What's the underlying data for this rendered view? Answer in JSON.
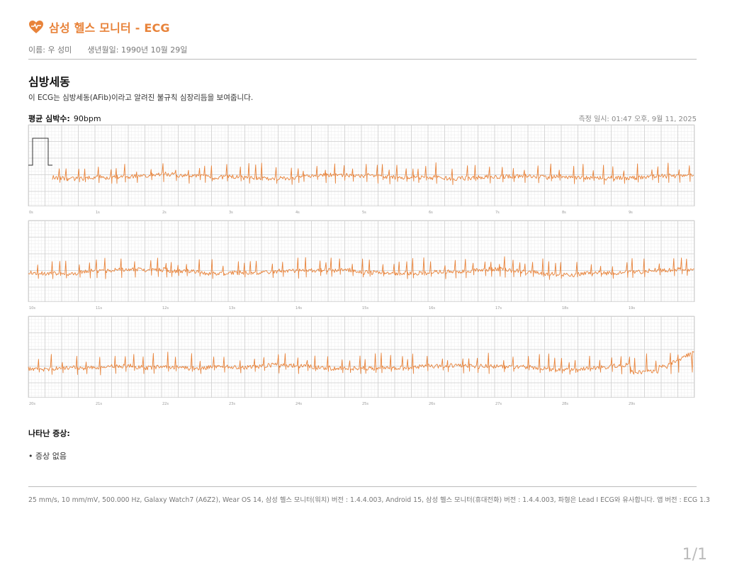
{
  "header": {
    "app_title": "삼성 헬스 모니터 - ECG",
    "name_label": "이름: 우 성미",
    "dob_label": "생년월일: 1990년 10월 29일"
  },
  "result": {
    "title": "심방세동",
    "description": "이 ECG는 심방세동(AFib)이라고 알려진 불규칙 심장리듬을 보여줍니다."
  },
  "heart_rate": {
    "label": "평균 심박수:",
    "value": "90bpm"
  },
  "measured_at": "측정 일시: 01:47 오후, 9월 11, 2025",
  "strips": [
    {
      "tick_labels": [
        "0s",
        "1s",
        "2s",
        "3s",
        "4s",
        "5s",
        "6s",
        "7s",
        "8s",
        "9s"
      ]
    },
    {
      "tick_labels": [
        "10s",
        "11s",
        "12s",
        "13s",
        "14s",
        "15s",
        "16s",
        "17s",
        "18s",
        "19s"
      ]
    },
    {
      "tick_labels": [
        "20s",
        "21s",
        "22s",
        "23s",
        "24s",
        "25s",
        "26s",
        "27s",
        "28s",
        "29s"
      ]
    }
  ],
  "symptoms": {
    "title": "나타난 증상:",
    "items": [
      "• 증상 없음"
    ]
  },
  "footer": "25 mm/s, 10 mm/mV, 500.000 Hz, Galaxy Watch7 (A6Z2), Wear OS 14, 삼성 헬스 모니터(워치) 버전 : 1.4.4.003, Android 15, 삼성 헬스 모니터(휴대전화) 버전 : 1.4.4.003, 파형은 Lead I ECG와 유사합니다. 앱 버전 : ECG 1.3",
  "page_number": "1/1",
  "colors": {
    "accent": "#e8833a",
    "trace": "#e8833a",
    "grid_major": "#cfcfcf",
    "grid_minor": "#ececec"
  }
}
